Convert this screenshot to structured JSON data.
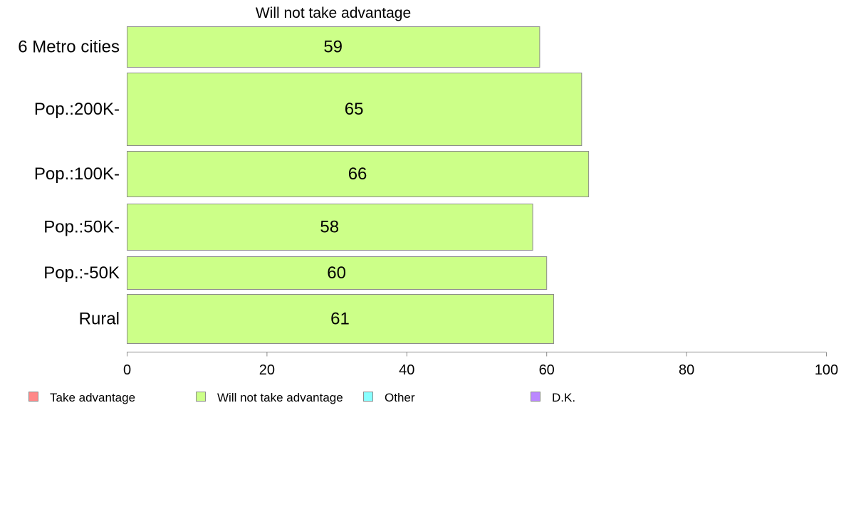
{
  "chart_data": {
    "type": "bar",
    "orientation": "horizontal",
    "title": "Will not take advantage",
    "categories": [
      "6 Metro cities",
      "Pop.:200K-",
      "Pop.:100K-",
      "Pop.:50K-",
      "Pop.:-50K",
      "Rural"
    ],
    "series": [
      {
        "name": "Will not take advantage",
        "color": "#ccff88",
        "values": [
          59,
          65,
          66,
          58,
          60,
          61
        ]
      }
    ],
    "data_labels": [
      "59",
      "65",
      "66",
      "58",
      "60",
      "61"
    ],
    "xlim": [
      0,
      100
    ],
    "xticks": [
      "0",
      "20",
      "40",
      "60",
      "80",
      "100"
    ],
    "grid": false,
    "legend_position": "bottom",
    "legend": [
      {
        "label": "Take advantage",
        "color": "#ff8888"
      },
      {
        "label": "Will not take advantage",
        "color": "#ccff88"
      },
      {
        "label": "Other",
        "color": "#88ffff"
      },
      {
        "label": "D.K.",
        "color": "#bb88ff"
      }
    ]
  }
}
